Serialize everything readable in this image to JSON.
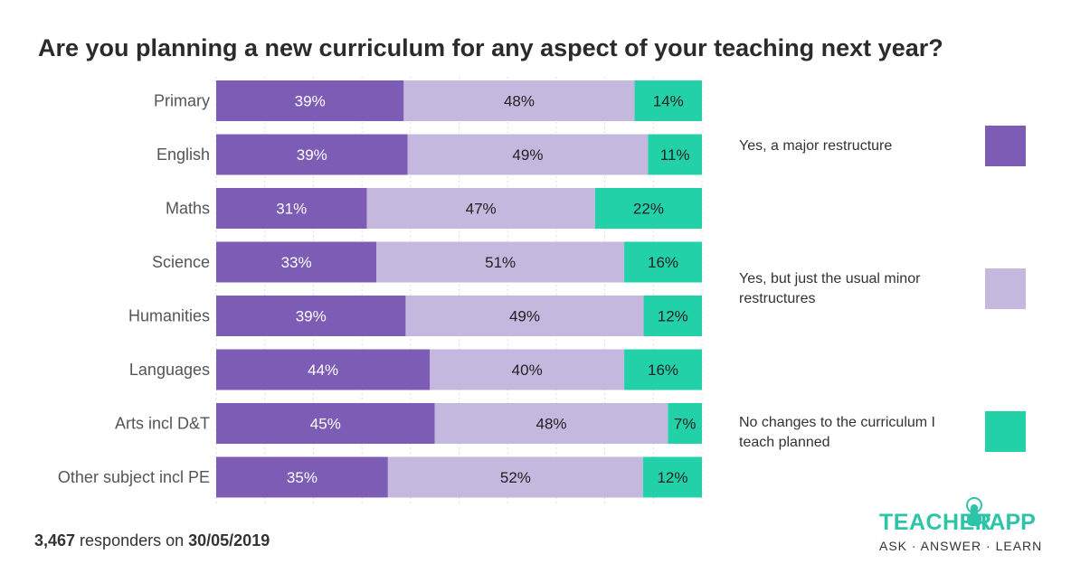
{
  "title": "Are you planning a new curriculum for any aspect of your teaching next year?",
  "footer": {
    "count": "3,467",
    "middle": " responders on ",
    "date": "30/05/2019"
  },
  "colors": {
    "major": "#7c5cb5",
    "minor": "#c4b8df",
    "none": "#23d1a9",
    "gridline": "#dddddd"
  },
  "logo": {
    "teacher": "TEACHER",
    "tapp": "TAPP",
    "tagline": "ASK · ANSWER · LEARN"
  },
  "chart_data": {
    "type": "bar",
    "orientation": "horizontal",
    "stacked": true,
    "title": "Are you planning a new curriculum for any aspect of your teaching next year?",
    "categories": [
      "Primary",
      "English",
      "Maths",
      "Science",
      "Humanities",
      "Languages",
      "Arts incl D&T",
      "Other subject incl PE"
    ],
    "series": [
      {
        "name": "Yes, a major restructure",
        "color": "#7c5cb5",
        "values": [
          39,
          39,
          31,
          33,
          39,
          44,
          45,
          35
        ],
        "labels": [
          "39%",
          "39%",
          "31%",
          "33%",
          "39%",
          "44%",
          "45%",
          "35%"
        ]
      },
      {
        "name": "Yes, but just the usual minor restructures",
        "color": "#c4b8df",
        "values": [
          48,
          49,
          47,
          51,
          49,
          40,
          48,
          52
        ],
        "labels": [
          "48%",
          "49%",
          "47%",
          "51%",
          "49%",
          "40%",
          "48%",
          "52%"
        ]
      },
      {
        "name": "No changes to the curriculum I teach planned",
        "color": "#23d1a9",
        "values": [
          14,
          11,
          22,
          16,
          12,
          16,
          7,
          12
        ],
        "labels": [
          "14%",
          "11%",
          "22%",
          "16%",
          "12%",
          "16%",
          "7%",
          "12%"
        ]
      }
    ],
    "xlim": [
      0,
      100
    ],
    "legend_position": "right"
  }
}
